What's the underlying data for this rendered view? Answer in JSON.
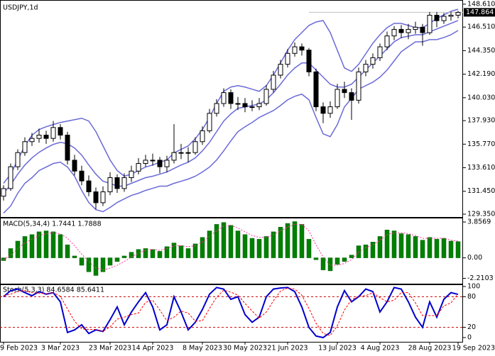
{
  "chart_data": [
    {
      "type": "candlestick",
      "title": "USDJPY,1d",
      "categories": [
        "9 Feb 2023",
        null,
        null,
        null,
        null,
        null,
        null,
        null,
        "3 Mar 2023",
        null,
        null,
        null,
        null,
        null,
        null,
        "23 Mar 2023",
        null,
        null,
        null,
        null,
        null,
        "14 Apr 2023",
        null,
        null,
        null,
        null,
        null,
        null,
        "8 May 2023",
        null,
        null,
        null,
        null,
        null,
        "30 May 2023",
        null,
        null,
        null,
        null,
        null,
        "21 Jun 2023",
        null,
        null,
        null,
        null,
        null,
        null,
        "13 Jul 2023",
        null,
        null,
        null,
        null,
        null,
        "4 Aug 2023",
        null,
        null,
        null,
        null,
        null,
        null,
        "28 Aug 2023",
        null,
        null,
        null,
        "19 Sep 2023"
      ],
      "ohlc": [
        [
          131.0,
          132.0,
          130.6,
          131.7
        ],
        [
          131.7,
          134.0,
          131.5,
          133.7
        ],
        [
          133.7,
          135.3,
          133.4,
          135.0
        ],
        [
          135.0,
          136.4,
          134.7,
          136.0
        ],
        [
          136.0,
          136.8,
          135.6,
          136.3
        ],
        [
          136.3,
          137.2,
          135.9,
          136.6
        ],
        [
          136.6,
          137.0,
          135.8,
          136.3
        ],
        [
          136.3,
          137.9,
          136.0,
          137.3
        ],
        [
          137.3,
          137.6,
          136.2,
          136.6
        ],
        [
          136.6,
          136.9,
          133.9,
          134.3
        ],
        [
          134.3,
          134.8,
          132.9,
          133.3
        ],
        [
          133.3,
          133.8,
          132.0,
          132.4
        ],
        [
          132.4,
          132.9,
          131.0,
          131.4
        ],
        [
          131.4,
          131.8,
          129.8,
          130.4
        ],
        [
          130.4,
          131.9,
          130.1,
          131.4
        ],
        [
          131.4,
          133.2,
          131.1,
          132.7
        ],
        [
          132.7,
          133.0,
          131.3,
          131.7
        ],
        [
          131.7,
          133.1,
          131.4,
          132.7
        ],
        [
          132.7,
          133.8,
          132.3,
          133.3
        ],
        [
          133.3,
          134.5,
          133.0,
          134.0
        ],
        [
          134.0,
          134.8,
          133.7,
          134.3
        ],
        [
          134.3,
          134.9,
          133.8,
          134.3
        ],
        [
          134.3,
          134.6,
          133.1,
          133.7
        ],
        [
          133.7,
          134.7,
          133.2,
          134.3
        ],
        [
          134.3,
          137.6,
          134.0,
          135.0
        ],
        [
          135.0,
          135.8,
          134.4,
          135.0
        ],
        [
          135.0,
          135.5,
          134.1,
          135.0
        ],
        [
          135.0,
          136.4,
          134.8,
          136.0
        ],
        [
          136.0,
          137.4,
          135.7,
          137.0
        ],
        [
          137.0,
          139.0,
          136.8,
          138.6
        ],
        [
          138.6,
          139.9,
          138.3,
          139.5
        ],
        [
          139.5,
          140.9,
          139.2,
          140.5
        ],
        [
          140.5,
          140.8,
          139.0,
          139.5
        ],
        [
          139.5,
          140.1,
          138.9,
          139.5
        ],
        [
          139.5,
          140.0,
          138.7,
          139.2
        ],
        [
          139.2,
          139.8,
          138.8,
          139.2
        ],
        [
          139.2,
          140.0,
          138.9,
          139.5
        ],
        [
          139.5,
          141.2,
          139.3,
          140.8
        ],
        [
          140.8,
          142.5,
          140.5,
          142.1
        ],
        [
          142.1,
          143.5,
          141.8,
          143.1
        ],
        [
          143.1,
          144.5,
          142.8,
          144.1
        ],
        [
          144.1,
          145.1,
          143.8,
          144.7
        ],
        [
          144.7,
          145.0,
          143.9,
          144.4
        ],
        [
          144.4,
          144.6,
          142.0,
          142.4
        ],
        [
          142.4,
          142.7,
          138.8,
          139.2
        ],
        [
          139.2,
          139.6,
          137.7,
          138.6
        ],
        [
          138.6,
          139.7,
          138.2,
          139.2
        ],
        [
          139.2,
          141.3,
          139.0,
          140.8
        ],
        [
          140.8,
          141.5,
          140.0,
          140.5
        ],
        [
          140.5,
          140.9,
          138.0,
          139.8
        ],
        [
          139.8,
          142.8,
          139.5,
          142.4
        ],
        [
          142.4,
          143.5,
          142.0,
          143.1
        ],
        [
          143.1,
          144.1,
          142.7,
          143.7
        ],
        [
          143.7,
          145.0,
          143.4,
          144.7
        ],
        [
          144.7,
          146.1,
          144.4,
          145.7
        ],
        [
          145.7,
          146.6,
          145.3,
          146.3
        ],
        [
          146.3,
          146.7,
          145.5,
          146.0
        ],
        [
          146.0,
          146.8,
          145.4,
          146.3
        ],
        [
          146.3,
          147.0,
          145.9,
          146.5
        ],
        [
          146.5,
          146.8,
          144.8,
          146.0
        ],
        [
          146.0,
          147.9,
          145.8,
          147.6
        ],
        [
          147.6,
          147.9,
          146.5,
          147.1
        ],
        [
          147.1,
          147.8,
          146.8,
          147.5
        ],
        [
          147.5,
          147.9,
          147.1,
          147.6
        ],
        [
          147.6,
          148.0,
          147.3,
          147.86
        ]
      ],
      "up_color": "#ffffff",
      "down_color": "#000000",
      "edge_color": "#000000",
      "bands": [
        {
          "color": "#6a6ad8",
          "values": [
            132.18,
            133.02,
            134.32,
            135.62,
            136.59,
            137.11,
            137.37,
            137.57,
            137.76,
            137.89,
            138.02,
            138.15,
            137.89,
            136.92,
            135.62,
            134.32,
            133.35,
            132.83,
            133.02,
            133.35,
            133.67,
            133.86,
            134.12,
            134.32,
            134.97,
            135.29,
            135.62,
            136.27,
            137.11,
            138.22,
            139.51,
            140.62,
            141.01,
            141.14,
            141.01,
            140.81,
            140.62,
            141.14,
            142.11,
            143.22,
            144.38,
            145.36,
            146.01,
            146.66,
            146.98,
            147.11,
            146.01,
            144.38,
            142.76,
            142.44,
            143.09,
            144.06,
            145.03,
            145.81,
            146.46,
            146.85,
            146.85,
            146.66,
            146.46,
            146.46,
            146.85,
            147.31,
            147.63,
            147.96,
            148.15
          ]
        },
        {
          "color": "#6a6ad8",
          "values": [
            131.27,
            132.05,
            133.02,
            133.86,
            134.51,
            135.03,
            135.42,
            135.75,
            135.94,
            135.81,
            135.42,
            134.77,
            133.86,
            133.02,
            132.37,
            132.18,
            131.92,
            131.92,
            132.18,
            132.44,
            132.7,
            132.83,
            133.02,
            133.22,
            133.54,
            133.86,
            134.12,
            134.51,
            135.16,
            135.94,
            136.92,
            137.89,
            138.54,
            139.06,
            139.19,
            139.32,
            139.45,
            139.84,
            140.49,
            141.27,
            142.11,
            142.76,
            143.22,
            143.22,
            142.57,
            141.92,
            141.27,
            141.01,
            141.01,
            141.27,
            141.92,
            142.57,
            143.22,
            143.87,
            144.51,
            145.16,
            145.55,
            145.68,
            145.81,
            145.81,
            146.07,
            146.33,
            146.59,
            146.85,
            147.11
          ]
        },
        {
          "color": "#6a6ad8",
          "values": [
            129.45,
            130.1,
            131.27,
            132.18,
            132.7,
            133.35,
            133.67,
            134.0,
            134.12,
            133.67,
            132.83,
            131.53,
            130.42,
            129.77,
            129.58,
            129.97,
            130.42,
            130.75,
            131.07,
            131.27,
            131.53,
            131.72,
            131.92,
            131.92,
            132.18,
            132.37,
            132.57,
            132.83,
            133.22,
            133.67,
            134.32,
            135.16,
            136.07,
            136.92,
            137.37,
            137.76,
            138.22,
            138.54,
            138.86,
            139.32,
            139.84,
            140.16,
            140.36,
            139.84,
            138.22,
            136.72,
            136.46,
            137.57,
            139.19,
            139.97,
            140.81,
            141.14,
            141.46,
            141.92,
            142.57,
            143.41,
            144.25,
            144.71,
            145.16,
            145.16,
            145.36,
            145.36,
            145.55,
            145.81,
            146.2
          ]
        }
      ],
      "last_price": 147.864,
      "price_line_color": "#c0c0c0",
      "ylim": [
        129.09,
        148.93
      ],
      "yticks": [
        {
          "value": 148.61,
          "label": "148.610"
        },
        {
          "value": 146.51,
          "label": "146.510"
        },
        {
          "value": 144.35,
          "label": "144.350"
        },
        {
          "value": 142.19,
          "label": "142.190"
        },
        {
          "value": 140.03,
          "label": "140.030"
        },
        {
          "value": 137.93,
          "label": "137.930"
        },
        {
          "value": 135.77,
          "label": "135.770"
        },
        {
          "value": 133.61,
          "label": "133.610"
        },
        {
          "value": 131.45,
          "label": "131.450"
        },
        {
          "value": 129.35,
          "label": "129.350"
        }
      ]
    },
    {
      "type": "bar",
      "title": "MACD(5,34,4) 1.7441 1.7888",
      "values": [
        -0.3,
        1.0,
        1.8,
        2.3,
        2.5,
        2.8,
        2.9,
        2.8,
        2.5,
        1.4,
        0.2,
        -0.8,
        -1.5,
        -1.9,
        -1.5,
        -0.8,
        -0.4,
        0.2,
        0.6,
        0.9,
        1.0,
        0.9,
        0.7,
        1.2,
        1.6,
        1.3,
        1.0,
        1.5,
        2.2,
        2.9,
        3.6,
        3.8,
        3.5,
        2.9,
        2.5,
        2.1,
        2.0,
        2.3,
        2.8,
        3.3,
        3.7,
        3.9,
        3.6,
        2.0,
        -0.2,
        -1.3,
        -1.4,
        -0.7,
        -0.4,
        0.3,
        1.3,
        1.4,
        1.7,
        2.3,
        3.0,
        2.9,
        2.6,
        2.5,
        2.3,
        1.9,
        2.2,
        2.0,
        2.1,
        1.8,
        1.7441
      ],
      "color": "#008000",
      "line_values": [
        -0.2,
        0.3,
        1.0,
        1.6,
        2.0,
        2.4,
        2.6,
        2.7,
        2.6,
        2.1,
        1.3,
        0.4,
        -0.4,
        -1.1,
        -1.3,
        -1.1,
        -0.8,
        -0.4,
        0.1,
        0.5,
        0.8,
        0.9,
        0.8,
        1.0,
        1.3,
        1.3,
        1.2,
        1.3,
        1.7,
        2.3,
        2.9,
        3.4,
        3.5,
        3.2,
        2.8,
        2.4,
        2.2,
        2.2,
        2.5,
        2.9,
        3.3,
        3.6,
        3.6,
        2.9,
        1.4,
        0.1,
        -0.8,
        -0.8,
        -0.6,
        -0.2,
        0.6,
        1.1,
        1.4,
        1.9,
        2.5,
        2.7,
        2.7,
        2.6,
        2.4,
        2.1,
        2.1,
        2.1,
        2.1,
        1.9,
        1.7888
      ],
      "line_color": "#ff3399",
      "ylim": [
        -2.78,
        4.24
      ],
      "yticks": [
        3.8569,
        {
          "value": 0,
          "label": "0.00"
        },
        -2.2103
      ]
    },
    {
      "type": "line",
      "title": "Stoch(5,3,3) 84.6584 85.6411",
      "series": [
        {
          "color": "#0000cc",
          "values": [
            80,
            92,
            95,
            88,
            82,
            90,
            85,
            88,
            70,
            10,
            15,
            25,
            8,
            15,
            12,
            35,
            60,
            25,
            50,
            70,
            88,
            60,
            15,
            25,
            80,
            50,
            15,
            30,
            55,
            85,
            98,
            95,
            75,
            80,
            45,
            30,
            40,
            80,
            95,
            97,
            98,
            90,
            60,
            20,
            3,
            0,
            10,
            60,
            92,
            70,
            80,
            95,
            90,
            50,
            70,
            98,
            95,
            70,
            40,
            20,
            70,
            40,
            75,
            88,
            84.6584
          ]
        },
        {
          "color": "#ff0000",
          "dashed": true,
          "values": [
            82,
            85,
            90,
            92,
            88,
            87,
            86,
            88,
            81,
            56,
            32,
            17,
            16,
            16,
            12,
            21,
            36,
            40,
            45,
            48,
            69,
            73,
            54,
            33,
            40,
            52,
            48,
            32,
            33,
            57,
            79,
            93,
            89,
            83,
            67,
            52,
            38,
            50,
            72,
            91,
            97,
            95,
            83,
            57,
            28,
            8,
            4,
            23,
            54,
            74,
            81,
            82,
            88,
            78,
            70,
            73,
            88,
            88,
            68,
            43,
            43,
            43,
            62,
            68,
            85.6411
          ]
        }
      ],
      "levels": [
        80,
        20
      ],
      "level_color": "#cc0000",
      "ylim": [
        0,
        100
      ],
      "yticks": [
        100,
        80,
        20,
        0
      ]
    }
  ]
}
